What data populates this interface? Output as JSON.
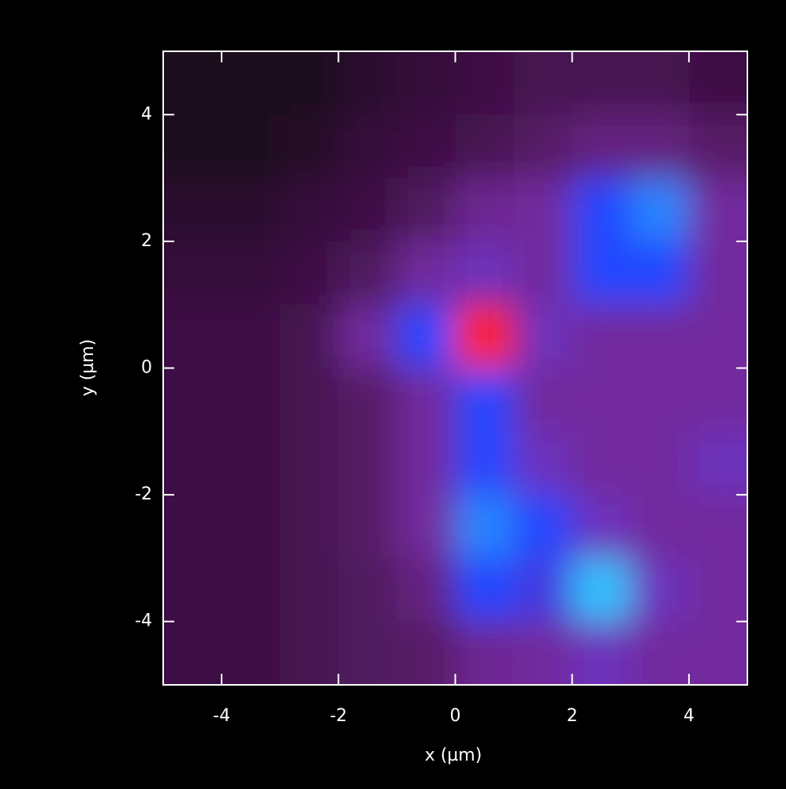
{
  "chart_data": {
    "type": "heatmap",
    "xlabel": "x (µm)",
    "ylabel": "y (µm)",
    "xlim": [
      -5,
      5
    ],
    "ylim": [
      -5,
      5
    ],
    "xticks": [
      -4,
      -2,
      0,
      2,
      4
    ],
    "yticks": [
      -4,
      -2,
      0,
      2,
      4
    ],
    "zlim": [
      0,
      1
    ],
    "colorscale": [
      "#000000",
      "#3a1040",
      "#5e2070",
      "#7a30b0",
      "#2040ff",
      "#30c8ff",
      "#00ff80",
      "#ffff00",
      "#ff8000",
      "#ff2000"
    ],
    "z": [
      [
        0.05,
        0.05,
        0.05,
        0.08,
        0.1,
        0.12,
        0.15,
        0.15,
        0.15,
        0.12
      ],
      [
        0.05,
        0.05,
        0.07,
        0.1,
        0.12,
        0.15,
        0.2,
        0.25,
        0.25,
        0.2
      ],
      [
        0.08,
        0.08,
        0.1,
        0.12,
        0.18,
        0.28,
        0.3,
        0.45,
        0.5,
        0.3
      ],
      [
        0.1,
        0.1,
        0.12,
        0.18,
        0.3,
        0.35,
        0.3,
        0.45,
        0.45,
        0.3
      ],
      [
        0.12,
        0.12,
        0.15,
        0.3,
        0.45,
        1.0,
        0.35,
        0.3,
        0.3,
        0.3
      ],
      [
        0.12,
        0.12,
        0.15,
        0.2,
        0.3,
        0.45,
        0.3,
        0.3,
        0.3,
        0.3
      ],
      [
        0.12,
        0.12,
        0.15,
        0.2,
        0.3,
        0.45,
        0.35,
        0.3,
        0.3,
        0.35
      ],
      [
        0.12,
        0.12,
        0.15,
        0.2,
        0.3,
        0.5,
        0.45,
        0.35,
        0.3,
        0.3
      ],
      [
        0.12,
        0.12,
        0.15,
        0.18,
        0.25,
        0.45,
        0.4,
        0.55,
        0.35,
        0.3
      ],
      [
        0.12,
        0.12,
        0.15,
        0.18,
        0.2,
        0.28,
        0.3,
        0.35,
        0.3,
        0.3
      ]
    ]
  }
}
